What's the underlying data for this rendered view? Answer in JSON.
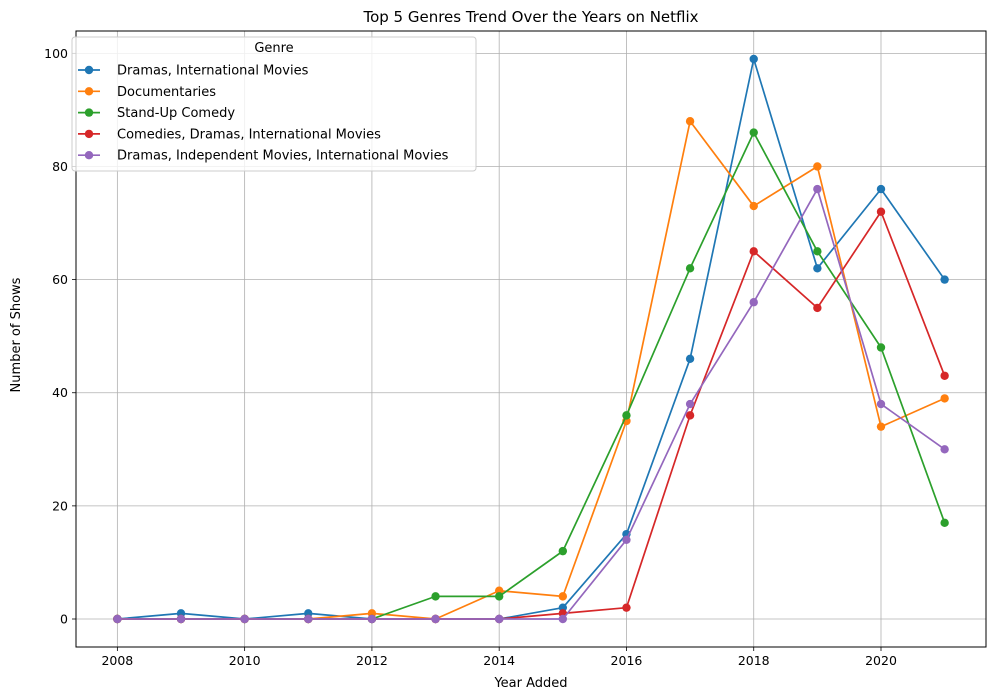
{
  "chart_data": {
    "type": "line",
    "title": "Top 5 Genres Trend Over the Years on Netflix",
    "xlabel": "Year Added",
    "ylabel": "Number of Shows",
    "x": [
      2008,
      2009,
      2010,
      2011,
      2012,
      2013,
      2014,
      2015,
      2016,
      2017,
      2018,
      2019,
      2020,
      2021
    ],
    "xlim": [
      2007.35,
      2021.65
    ],
    "ylim": [
      -4.95,
      103.95
    ],
    "xticks": [
      2008,
      2010,
      2012,
      2014,
      2016,
      2018,
      2020
    ],
    "yticks": [
      0,
      20,
      40,
      60,
      80,
      100
    ],
    "grid": true,
    "legend": {
      "title": "Genre",
      "placement": "top-left"
    },
    "series": [
      {
        "name": "Dramas, International Movies",
        "color": "#1f77b4",
        "values": [
          0,
          1,
          0,
          1,
          0,
          0,
          0,
          2,
          15,
          46,
          99,
          62,
          76,
          60
        ]
      },
      {
        "name": "Documentaries",
        "color": "#ff7f0e",
        "values": [
          0,
          0,
          0,
          0,
          1,
          0,
          5,
          4,
          35,
          88,
          73,
          80,
          34,
          39
        ]
      },
      {
        "name": "Stand-Up Comedy",
        "color": "#2ca02c",
        "values": [
          0,
          0,
          0,
          0,
          0,
          4,
          4,
          12,
          36,
          62,
          86,
          65,
          48,
          17
        ]
      },
      {
        "name": "Comedies, Dramas, International Movies",
        "color": "#d62728",
        "values": [
          0,
          0,
          0,
          0,
          0,
          0,
          0,
          1,
          2,
          36,
          65,
          55,
          72,
          43
        ]
      },
      {
        "name": "Dramas, Independent Movies, International Movies",
        "color": "#9467bd",
        "values": [
          0,
          0,
          0,
          0,
          0,
          0,
          0,
          0,
          14,
          38,
          56,
          76,
          38,
          30
        ]
      }
    ]
  }
}
